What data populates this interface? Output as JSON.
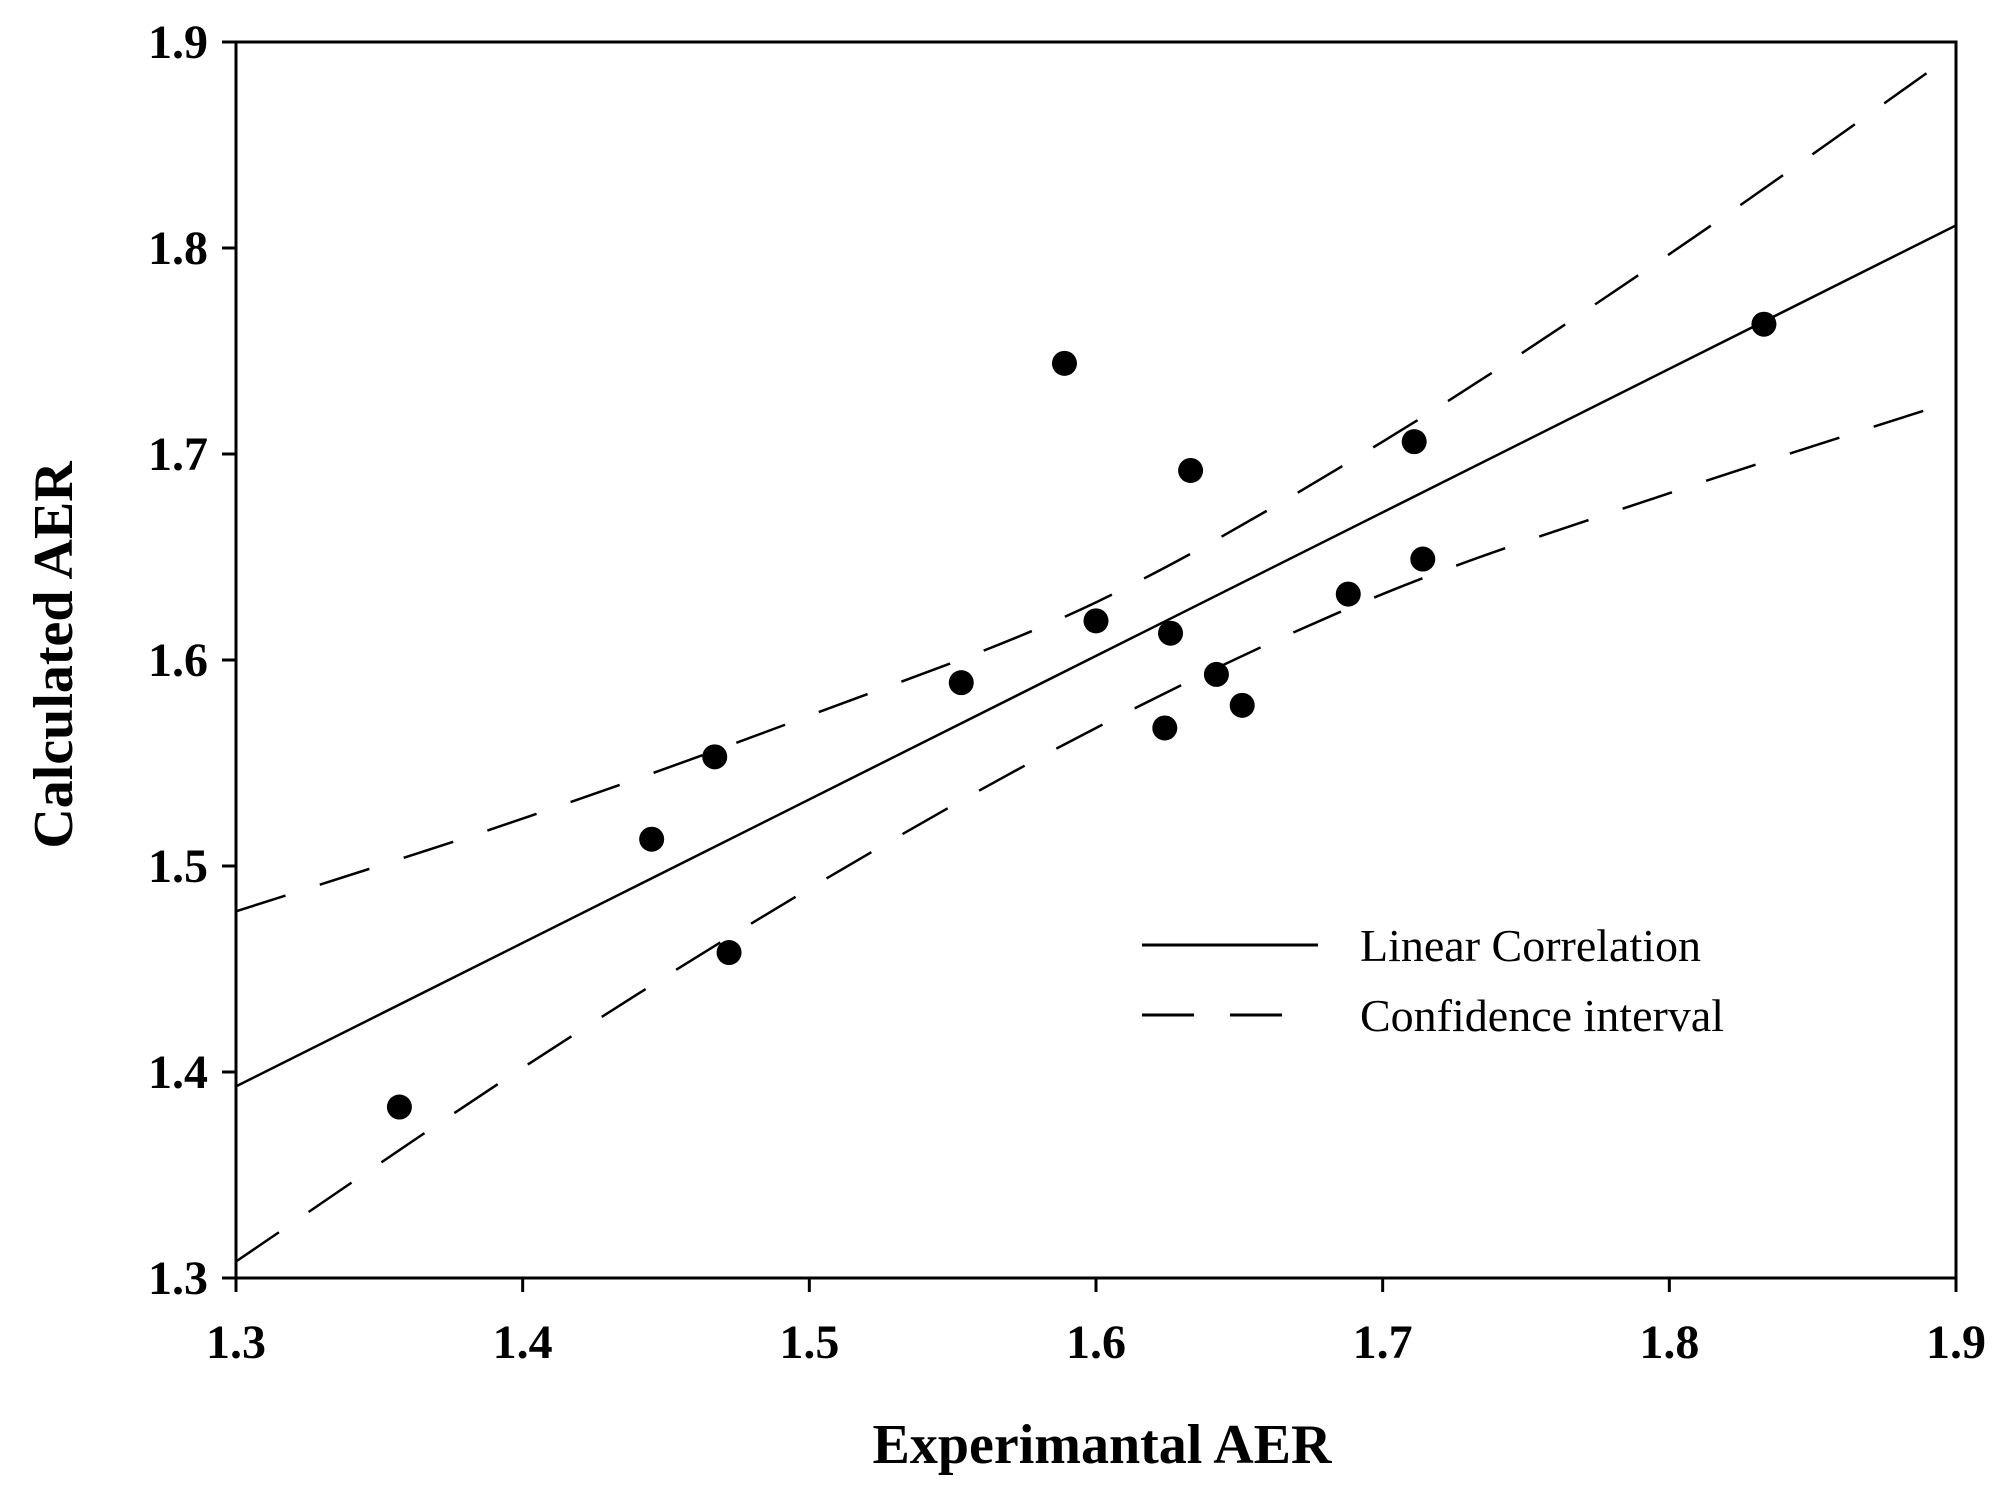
{
  "chart_data": {
    "type": "scatter",
    "title": "",
    "xlabel": "Experimantal AER",
    "ylabel": "Calculated AER",
    "xlim": [
      1.3,
      1.9
    ],
    "ylim": [
      1.3,
      1.9
    ],
    "xticks": [
      "1.3",
      "1.4",
      "1.5",
      "1.6",
      "1.7",
      "1.8",
      "1.9"
    ],
    "yticks": [
      "1.3",
      "1.4",
      "1.5",
      "1.6",
      "1.7",
      "1.8",
      "1.9"
    ],
    "grid": false,
    "legend_position": "lower-right",
    "points": [
      {
        "x": 1.357,
        "y": 1.383
      },
      {
        "x": 1.445,
        "y": 1.513
      },
      {
        "x": 1.467,
        "y": 1.553
      },
      {
        "x": 1.472,
        "y": 1.458
      },
      {
        "x": 1.553,
        "y": 1.589
      },
      {
        "x": 1.589,
        "y": 1.744
      },
      {
        "x": 1.6,
        "y": 1.619
      },
      {
        "x": 1.624,
        "y": 1.567
      },
      {
        "x": 1.626,
        "y": 1.613
      },
      {
        "x": 1.633,
        "y": 1.692
      },
      {
        "x": 1.642,
        "y": 1.593
      },
      {
        "x": 1.651,
        "y": 1.578
      },
      {
        "x": 1.688,
        "y": 1.632
      },
      {
        "x": 1.711,
        "y": 1.706
      },
      {
        "x": 1.714,
        "y": 1.649
      },
      {
        "x": 1.833,
        "y": 1.763
      }
    ],
    "series": [
      {
        "name": "Linear Correlation",
        "style": "solid",
        "x": [
          1.3,
          1.9
        ],
        "y": [
          1.393,
          1.811
        ]
      },
      {
        "name": "Confidence interval",
        "style": "dashed",
        "x": [
          1.3,
          1.4,
          1.5,
          1.6,
          1.7,
          1.8,
          1.9
        ],
        "y": [
          1.478,
          1.523,
          1.573,
          1.628,
          1.706,
          1.797,
          1.895
        ]
      },
      {
        "name": "",
        "style": "dashed",
        "x": [
          1.3,
          1.4,
          1.5,
          1.6,
          1.7,
          1.8,
          1.9
        ],
        "y": [
          1.308,
          1.402,
          1.489,
          1.567,
          1.632,
          1.681,
          1.726
        ]
      }
    ],
    "legend": [
      "Linear Correlation",
      "Confidence interval"
    ],
    "colors": {
      "points": "#000000",
      "lines": "#000000"
    }
  }
}
